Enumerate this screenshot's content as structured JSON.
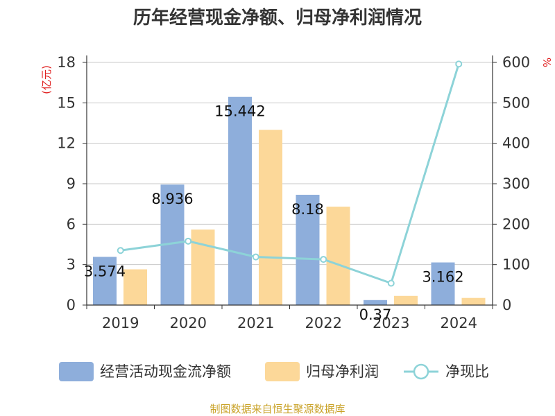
{
  "colors": {
    "bar1": "#8eaedb",
    "bar2": "#fcd899",
    "line": "#8dd3d8",
    "grid": "#c8c8c8",
    "axis": "#333333",
    "unit": "#e02020",
    "source": "#c9a227"
  },
  "chart_data": {
    "type": "bar",
    "title": "历年经营现金净额、归母净利润情况",
    "categories": [
      "2019",
      "2020",
      "2021",
      "2022",
      "2023",
      "2024"
    ],
    "y_left": {
      "label": "(亿元)",
      "lim": [
        0,
        18
      ],
      "ticks": [
        "0",
        "3",
        "6",
        "9",
        "12",
        "15",
        "18"
      ]
    },
    "y_right": {
      "label": "%",
      "lim": [
        0,
        600
      ],
      "ticks": [
        "0",
        "100",
        "200",
        "300",
        "400",
        "500",
        "600"
      ]
    },
    "series": [
      {
        "name": "经营活动现金流净额",
        "kind": "bar",
        "axis": "left",
        "values": [
          3.574,
          8.936,
          15.442,
          8.18,
          0.37,
          3.162
        ],
        "labels": [
          "3.574",
          "8.936",
          "15.442",
          "8.18",
          "0.37",
          "3.162"
        ]
      },
      {
        "name": "归母净利润",
        "kind": "bar",
        "axis": "left",
        "values": [
          2.65,
          5.6,
          13.0,
          7.3,
          0.68,
          0.53
        ]
      },
      {
        "name": "净现比",
        "kind": "line",
        "axis": "right",
        "values": [
          135,
          158,
          119,
          113,
          54,
          596
        ]
      }
    ],
    "legend": [
      "经营活动现金流净额",
      "归母净利润",
      "净现比"
    ],
    "legend_position": "bottom",
    "grid": true
  },
  "source": "制图数据来自恒生聚源数据库"
}
